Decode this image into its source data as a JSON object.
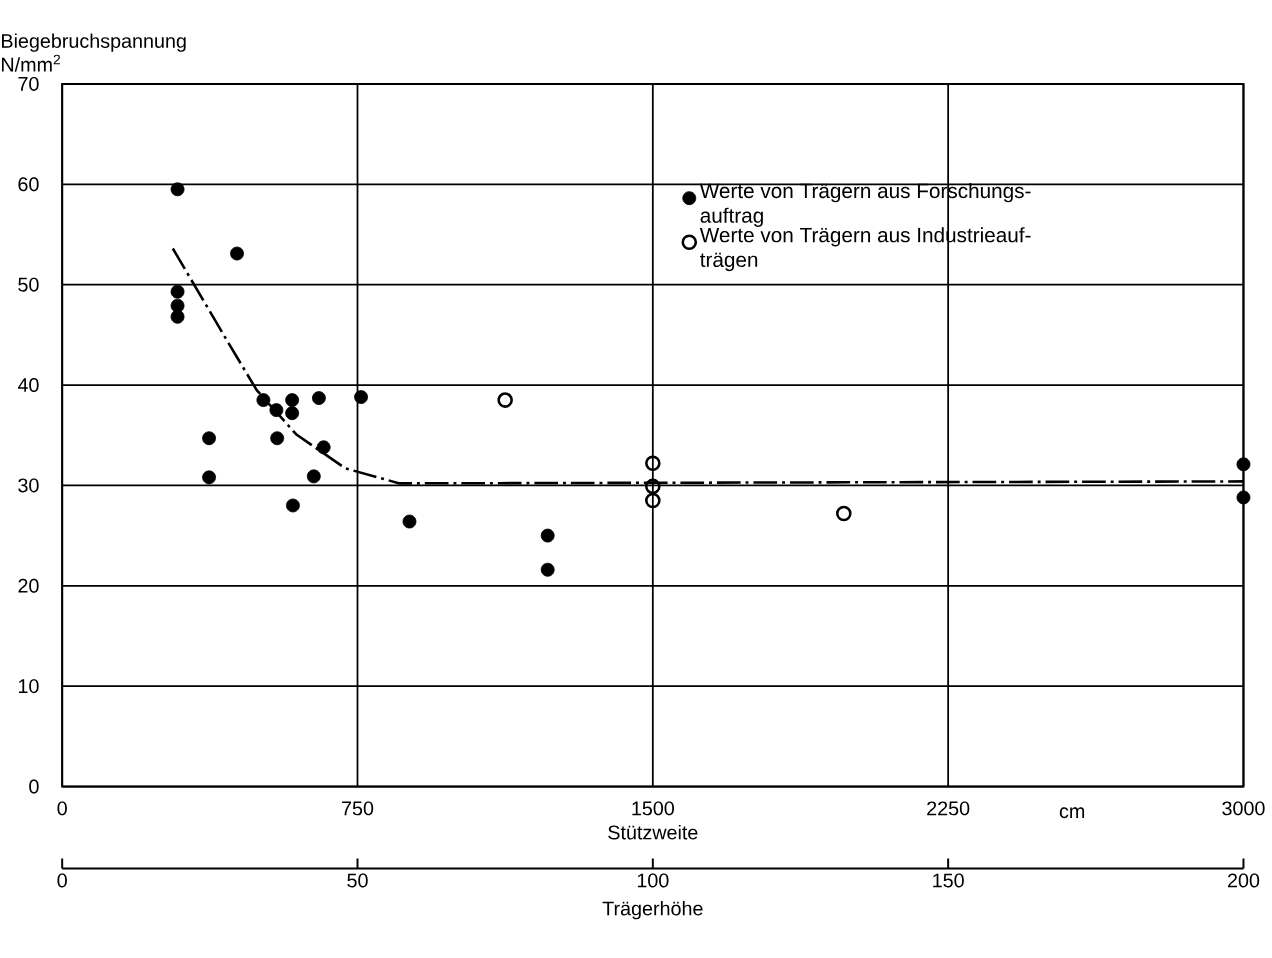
{
  "chart_data": {
    "type": "scatter",
    "xlabel": "Stützweite",
    "ylabel": "Biegebruchspannung N/mm$^{2}$",
    "x2label": "Trägerhöhe",
    "xlim": [
      0,
      3000
    ],
    "xticks": [
      0,
      750,
      1500,
      2250,
      3000
    ],
    "x2lim": [
      0,
      200
    ],
    "x2ticks": [
      0,
      50,
      100,
      150,
      200
    ],
    "ylim": [
      0,
      70
    ],
    "yticks": [
      0,
      10,
      20,
      30,
      40,
      50,
      60,
      70
    ],
    "grid": true,
    "legend": "top right",
    "annotations": [
      "cm"
    ],
    "series": [
      {
        "name": "Werte von Trägern aus Forschungs- auftrag",
        "marker": "circle",
        "color": "#000000",
        "x": [
          293,
          293,
          293,
          293,
          444,
          373,
          373,
          511,
          544,
          546,
          584,
          584,
          586,
          639,
          652,
          664,
          759,
          882,
          1233,
          1233,
          3000,
          3000
        ],
        "values": [
          59.5,
          49.3,
          47.9,
          46.8,
          53.1,
          34.7,
          30.8,
          38.5,
          37.5,
          34.7,
          38.5,
          37.2,
          28.0,
          30.9,
          38.7,
          33.8,
          38.8,
          26.4,
          25.0,
          21.6,
          32.1,
          28.8
        ]
      },
      {
        "name": "Werte von Trägern aus Industrieauf- trägen",
        "marker": "circle open",
        "color": "#000000",
        "x": [
          1125,
          1500,
          1500,
          1500,
          1985
        ],
        "values": [
          38.5,
          32.2,
          29.9,
          28.5,
          27.2
        ]
      },
      {
        "type": "line",
        "line_style": "dash dot",
        "marker": "none",
        "color": "#000000",
        "x": [
          281,
          419,
          494,
          594,
          719,
          857,
          3000
        ],
        "values": [
          53.6,
          44.4,
          39.5,
          35.1,
          31.7,
          30.2,
          30.4
        ]
      }
    ]
  }
}
